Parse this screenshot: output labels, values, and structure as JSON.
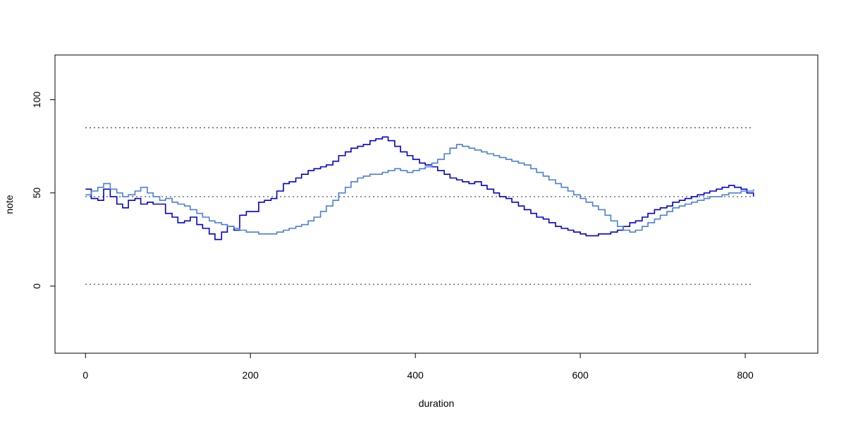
{
  "chart_data": {
    "type": "line",
    "title": "",
    "xlabel": "duration",
    "ylabel": "note",
    "xlim": [
      -37,
      888
    ],
    "ylim": [
      -36,
      124
    ],
    "x_ticks": [
      0,
      200,
      400,
      600,
      800
    ],
    "y_ticks": [
      0,
      50,
      100
    ],
    "x_tick_labels": [
      "0",
      "200",
      "400",
      "600",
      "800"
    ],
    "y_tick_labels": [
      "0",
      "50",
      "100"
    ],
    "grid": false,
    "legend": "none",
    "reference_lines": [
      {
        "y": 1,
        "x_range": [
          0,
          810
        ],
        "style": "dotted",
        "color": "#000000"
      },
      {
        "y": 48,
        "x_range": [
          0,
          810
        ],
        "style": "dotted",
        "color": "#000000"
      },
      {
        "y": 85,
        "x_range": [
          0,
          810
        ],
        "style": "dotted",
        "color": "#000000"
      }
    ],
    "series": [
      {
        "color": "#0000cd",
        "step": true,
        "points": [
          [
            0,
            52
          ],
          [
            7,
            47
          ],
          [
            15,
            46
          ],
          [
            22,
            52
          ],
          [
            30,
            48
          ],
          [
            38,
            44
          ],
          [
            45,
            42
          ],
          [
            52,
            46
          ],
          [
            60,
            47
          ],
          [
            67,
            44
          ],
          [
            75,
            45
          ],
          [
            82,
            44
          ],
          [
            90,
            44
          ],
          [
            97,
            39
          ],
          [
            105,
            37
          ],
          [
            112,
            34
          ],
          [
            120,
            35
          ],
          [
            127,
            37
          ],
          [
            135,
            33
          ],
          [
            142,
            31
          ],
          [
            150,
            28
          ],
          [
            157,
            25
          ],
          [
            165,
            29
          ],
          [
            172,
            32
          ],
          [
            180,
            30
          ],
          [
            187,
            38
          ],
          [
            195,
            40
          ],
          [
            202,
            40
          ],
          [
            210,
            45
          ],
          [
            217,
            46
          ],
          [
            225,
            47
          ],
          [
            232,
            51
          ],
          [
            240,
            55
          ],
          [
            247,
            56
          ],
          [
            255,
            58
          ],
          [
            262,
            60
          ],
          [
            270,
            62
          ],
          [
            277,
            63
          ],
          [
            285,
            64
          ],
          [
            292,
            65
          ],
          [
            300,
            67
          ],
          [
            307,
            70
          ],
          [
            315,
            72
          ],
          [
            322,
            74
          ],
          [
            330,
            75
          ],
          [
            337,
            76
          ],
          [
            345,
            78
          ],
          [
            352,
            79
          ],
          [
            360,
            80
          ],
          [
            367,
            78
          ],
          [
            375,
            75
          ],
          [
            382,
            72
          ],
          [
            390,
            70
          ],
          [
            397,
            68
          ],
          [
            405,
            66
          ],
          [
            412,
            65
          ],
          [
            420,
            64
          ],
          [
            427,
            62
          ],
          [
            435,
            60
          ],
          [
            442,
            58
          ],
          [
            450,
            57
          ],
          [
            457,
            56
          ],
          [
            465,
            55
          ],
          [
            472,
            56
          ],
          [
            480,
            54
          ],
          [
            487,
            52
          ],
          [
            495,
            50
          ],
          [
            502,
            48
          ],
          [
            510,
            47
          ],
          [
            517,
            45
          ],
          [
            525,
            43
          ],
          [
            532,
            41
          ],
          [
            540,
            39
          ],
          [
            547,
            37
          ],
          [
            555,
            36
          ],
          [
            562,
            34
          ],
          [
            570,
            32
          ],
          [
            577,
            31
          ],
          [
            585,
            30
          ],
          [
            592,
            29
          ],
          [
            600,
            28
          ],
          [
            607,
            27
          ],
          [
            615,
            27
          ],
          [
            622,
            28
          ],
          [
            630,
            28
          ],
          [
            637,
            29
          ],
          [
            645,
            30
          ],
          [
            652,
            32
          ],
          [
            660,
            34
          ],
          [
            667,
            35
          ],
          [
            675,
            37
          ],
          [
            682,
            39
          ],
          [
            690,
            41
          ],
          [
            697,
            42
          ],
          [
            705,
            43
          ],
          [
            712,
            45
          ],
          [
            720,
            46
          ],
          [
            727,
            47
          ],
          [
            735,
            48
          ],
          [
            742,
            49
          ],
          [
            750,
            50
          ],
          [
            757,
            51
          ],
          [
            765,
            52
          ],
          [
            772,
            53
          ],
          [
            780,
            54
          ],
          [
            787,
            53
          ],
          [
            795,
            52
          ],
          [
            802,
            50
          ],
          [
            810,
            48
          ]
        ]
      },
      {
        "color": "#4a7fd4",
        "step": true,
        "points": [
          [
            0,
            49
          ],
          [
            7,
            51
          ],
          [
            15,
            53
          ],
          [
            22,
            55
          ],
          [
            30,
            52
          ],
          [
            38,
            50
          ],
          [
            45,
            48
          ],
          [
            52,
            49
          ],
          [
            60,
            51
          ],
          [
            67,
            53
          ],
          [
            75,
            50
          ],
          [
            82,
            48
          ],
          [
            90,
            46
          ],
          [
            97,
            47
          ],
          [
            105,
            45
          ],
          [
            112,
            44
          ],
          [
            120,
            43
          ],
          [
            127,
            41
          ],
          [
            135,
            39
          ],
          [
            142,
            37
          ],
          [
            150,
            35
          ],
          [
            157,
            34
          ],
          [
            165,
            33
          ],
          [
            172,
            32
          ],
          [
            180,
            31
          ],
          [
            187,
            30
          ],
          [
            195,
            29
          ],
          [
            202,
            29
          ],
          [
            210,
            28
          ],
          [
            217,
            28
          ],
          [
            225,
            28
          ],
          [
            232,
            29
          ],
          [
            240,
            30
          ],
          [
            247,
            31
          ],
          [
            255,
            32
          ],
          [
            262,
            33
          ],
          [
            270,
            35
          ],
          [
            277,
            37
          ],
          [
            285,
            40
          ],
          [
            292,
            43
          ],
          [
            300,
            46
          ],
          [
            307,
            50
          ],
          [
            315,
            53
          ],
          [
            322,
            56
          ],
          [
            330,
            58
          ],
          [
            337,
            59
          ],
          [
            345,
            60
          ],
          [
            352,
            60
          ],
          [
            360,
            61
          ],
          [
            367,
            62
          ],
          [
            375,
            63
          ],
          [
            382,
            62
          ],
          [
            390,
            61
          ],
          [
            397,
            62
          ],
          [
            405,
            63
          ],
          [
            412,
            64
          ],
          [
            420,
            66
          ],
          [
            427,
            68
          ],
          [
            435,
            71
          ],
          [
            442,
            74
          ],
          [
            450,
            76
          ],
          [
            457,
            75
          ],
          [
            465,
            74
          ],
          [
            472,
            73
          ],
          [
            480,
            72
          ],
          [
            487,
            71
          ],
          [
            495,
            70
          ],
          [
            502,
            69
          ],
          [
            510,
            68
          ],
          [
            517,
            67
          ],
          [
            525,
            66
          ],
          [
            532,
            65
          ],
          [
            540,
            63
          ],
          [
            547,
            61
          ],
          [
            555,
            59
          ],
          [
            562,
            57
          ],
          [
            570,
            55
          ],
          [
            577,
            53
          ],
          [
            585,
            51
          ],
          [
            592,
            49
          ],
          [
            600,
            47
          ],
          [
            607,
            45
          ],
          [
            615,
            43
          ],
          [
            622,
            41
          ],
          [
            630,
            38
          ],
          [
            637,
            35
          ],
          [
            645,
            32
          ],
          [
            652,
            30
          ],
          [
            660,
            29
          ],
          [
            667,
            30
          ],
          [
            675,
            32
          ],
          [
            682,
            34
          ],
          [
            690,
            36
          ],
          [
            697,
            38
          ],
          [
            705,
            40
          ],
          [
            712,
            42
          ],
          [
            720,
            43
          ],
          [
            727,
            44
          ],
          [
            735,
            45
          ],
          [
            742,
            46
          ],
          [
            750,
            47
          ],
          [
            757,
            48
          ],
          [
            765,
            48
          ],
          [
            772,
            49
          ],
          [
            780,
            50
          ],
          [
            787,
            50
          ],
          [
            795,
            51
          ],
          [
            802,
            51
          ],
          [
            810,
            52
          ]
        ]
      }
    ]
  }
}
